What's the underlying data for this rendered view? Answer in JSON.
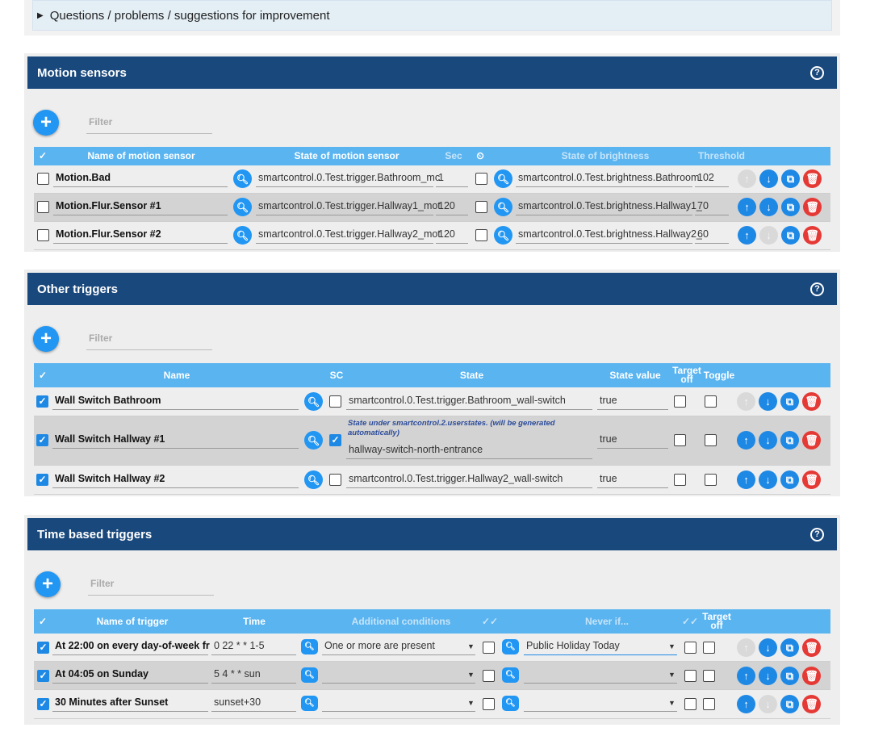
{
  "faq": {
    "label": "Questions / problems / suggestions for improvement"
  },
  "filter_placeholder": "Filter",
  "motion": {
    "title": "Motion sensors",
    "headers": {
      "check": "✓",
      "name": "Name of motion sensor",
      "state": "State of motion sensor",
      "sec": "Sec",
      "brightness": "State of brightness",
      "threshold": "Threshold"
    },
    "rows": [
      {
        "active": false,
        "name": "Motion.Bad",
        "state": "smartcontrol.0.Test.trigger.Bathroom_mc",
        "sec": "1",
        "brightness": "smartcontrol.0.Test.brightness.Bathroom",
        "threshold": "102"
      },
      {
        "active": false,
        "name": "Motion.Flur.Sensor #1",
        "state": "smartcontrol.0.Test.trigger.Hallway1_mot",
        "sec": "120",
        "brightness": "smartcontrol.0.Test.brightness.Hallway1_",
        "threshold": "70"
      },
      {
        "active": false,
        "name": "Motion.Flur.Sensor #2",
        "state": "smartcontrol.0.Test.trigger.Hallway2_mot",
        "sec": "120",
        "brightness": "smartcontrol.0.Test.brightness.Hallway2_",
        "threshold": "60"
      }
    ]
  },
  "other": {
    "title": "Other triggers",
    "headers": {
      "check": "✓",
      "name": "Name",
      "sc": "SC",
      "state": "State",
      "value": "State value",
      "target": "Target off",
      "toggle": "Toggle"
    },
    "note": "State under smartcontrol.2.userstates. (will be generated automatically)",
    "rows": [
      {
        "active": true,
        "name": "Wall Switch Bathroom",
        "sc": false,
        "state": "smartcontrol.0.Test.trigger.Bathroom_wall-switch",
        "value": "true"
      },
      {
        "active": true,
        "name": "Wall Switch Hallway #1",
        "sc": true,
        "state": "hallway-switch-north-entrance",
        "value": "true"
      },
      {
        "active": true,
        "name": "Wall Switch Hallway #2",
        "sc": false,
        "state": "smartcontrol.0.Test.trigger.Hallway2_wall-switch",
        "value": "true"
      }
    ]
  },
  "time": {
    "title": "Time based triggers",
    "headers": {
      "check": "✓",
      "name": "Name of trigger",
      "time": "Time",
      "conditions": "Additional conditions",
      "never": "Never if...",
      "target": "Target off"
    },
    "rows": [
      {
        "active": true,
        "name": "At 22:00 on every day-of-week fr",
        "time": "0 22 * * 1-5",
        "conditions": "One or more are present",
        "never": "Public Holiday Today"
      },
      {
        "active": true,
        "name": "At 04:05 on Sunday",
        "time": "5 4 * * sun",
        "conditions": "",
        "never": ""
      },
      {
        "active": true,
        "name": "30 Minutes after Sunset",
        "time": "sunset+30",
        "conditions": "",
        "never": ""
      }
    ]
  }
}
